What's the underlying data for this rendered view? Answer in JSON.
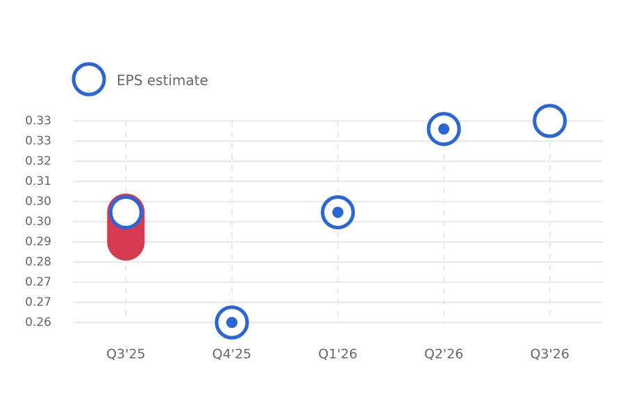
{
  "chart_data": {
    "type": "eps",
    "categories": [
      "Q3'25",
      "Q4'25",
      "Q1'26",
      "Q2'26",
      "Q3'26"
    ],
    "estimate": {
      "name": "EPS estimate",
      "color": "#2a66d6",
      "values": [
        0.301,
        0.26,
        0.301,
        0.332,
        0.335
      ]
    },
    "actual": {
      "color": "#d63a50",
      "values": [
        0.29,
        0.26,
        0.301,
        0.332,
        null
      ]
    },
    "ylim": [
      0.26,
      0.335
    ],
    "yticks": [
      {
        "value": 0.26,
        "label": "0.26"
      },
      {
        "value": 0.2675,
        "label": "0.27"
      },
      {
        "value": 0.275,
        "label": "0.27"
      },
      {
        "value": 0.2825,
        "label": "0.28"
      },
      {
        "value": 0.29,
        "label": "0.29"
      },
      {
        "value": 0.2975,
        "label": "0.30"
      },
      {
        "value": 0.305,
        "label": "0.30"
      },
      {
        "value": 0.3125,
        "label": "0.31"
      },
      {
        "value": 0.32,
        "label": "0.32"
      },
      {
        "value": 0.3275,
        "label": "0.33"
      },
      {
        "value": 0.335,
        "label": "0.33"
      }
    ],
    "grid": true
  }
}
